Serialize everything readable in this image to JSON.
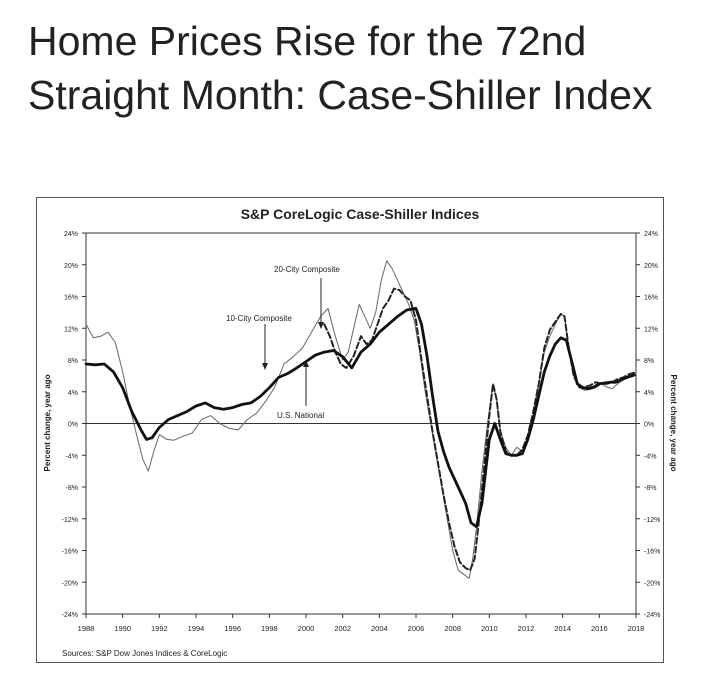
{
  "headline": "Home Prices Rise for the 72nd Straight Month: Case-Shiller Index",
  "chart_data": {
    "type": "line",
    "title": "S&P CoreLogic Case-Shiller Indices",
    "ylabel": "Percent change, year ago",
    "ylabel_right": "Percent change, year ago",
    "source": "Sources: S&P Dow Jones Indices & CoreLogic",
    "xlim": [
      1988,
      2018
    ],
    "ylim": [
      -24,
      24
    ],
    "grid": false,
    "x_ticks": [
      1988,
      1990,
      1992,
      1994,
      1996,
      1998,
      2000,
      2002,
      2004,
      2006,
      2008,
      2010,
      2012,
      2014,
      2016,
      2018
    ],
    "x_tick_labels": [
      "1988",
      "1990",
      "1992",
      "1994",
      "1996",
      "1998",
      "2000",
      "2002",
      "2004",
      "2006",
      "2008",
      "2010",
      "2012",
      "2014",
      "2016",
      "2018"
    ],
    "y_ticks": [
      24,
      20,
      16,
      12,
      8,
      4,
      0,
      -4,
      -8,
      -12,
      -16,
      -20,
      -24
    ],
    "y_tick_labels": [
      "24%",
      "20%",
      "16%",
      "12%",
      "8%",
      "4%",
      "0%",
      "-4%",
      "-8%",
      "-12%",
      "-16%",
      "-20%",
      "-24%"
    ],
    "series": [
      {
        "name": "10-City Composite",
        "style": "thin",
        "color": "#666666",
        "x": [
          1988,
          1988.4,
          1988.8,
          1989.2,
          1989.6,
          1990,
          1990.4,
          1990.8,
          1991.1,
          1991.4,
          1991.7,
          1992,
          1992.4,
          1992.8,
          1993.3,
          1993.8,
          1994.3,
          1994.8,
          1995.3,
          1995.8,
          1996.3,
          1996.8,
          1997.3,
          1997.8,
          1998.3,
          1998.8,
          1999.3,
          1999.8,
          2000.3,
          2000.8,
          2001.2,
          2001.6,
          2002,
          2002.3,
          2002.6,
          2002.9,
          2003.2,
          2003.5,
          2003.8,
          2004.1,
          2004.4,
          2004.7,
          2005,
          2005.3,
          2005.6,
          2005.9,
          2006.2,
          2006.5,
          2006.8,
          2007.1,
          2007.4,
          2007.7,
          2008,
          2008.3,
          2008.6,
          2008.9,
          2009.1,
          2009.3,
          2009.6,
          2009.9,
          2010.2,
          2010.4,
          2010.6,
          2010.9,
          2011.2,
          2011.5,
          2011.8,
          2012.1,
          2012.4,
          2012.7,
          2013,
          2013.3,
          2013.6,
          2013.9,
          2014.1,
          2014.3,
          2014.6,
          2014.9,
          2015.2,
          2015.5,
          2015.8,
          2016.1,
          2016.4,
          2016.7,
          2017,
          2017.3,
          2017.6,
          2017.9
        ],
        "values": [
          12.5,
          10.8,
          11,
          11.5,
          10.2,
          6.5,
          2,
          -1.8,
          -4.5,
          -6,
          -3.5,
          -1.4,
          -2,
          -2.1,
          -1.6,
          -1.2,
          0.5,
          1,
          0,
          -0.6,
          -0.8,
          0.5,
          1.3,
          2.8,
          4.6,
          7.5,
          8.4,
          9.5,
          11.5,
          13.5,
          14.5,
          11,
          8,
          9,
          12,
          15,
          13.5,
          12,
          14,
          18,
          20.5,
          19.5,
          18,
          16.5,
          15,
          13,
          9,
          4,
          0,
          -4,
          -8,
          -12,
          -16,
          -18.5,
          -19,
          -19.5,
          -17,
          -13,
          -6,
          0,
          5,
          3,
          -1,
          -3,
          -4,
          -3,
          -3.5,
          -2,
          1,
          5,
          9,
          11,
          12.5,
          13.8,
          13.5,
          10,
          6,
          4.5,
          4.2,
          4.3,
          4.5,
          5,
          4.6,
          4.4,
          5,
          5.5,
          6,
          6.3
        ]
      },
      {
        "name": "20-City Composite",
        "style": "dashed",
        "color": "#222222",
        "x": [
          2001,
          2001.3,
          2001.6,
          2001.9,
          2002.2,
          2002.6,
          2003,
          2003.3,
          2003.6,
          2003.9,
          2004.2,
          2004.5,
          2004.8,
          2005.1,
          2005.4,
          2005.7,
          2006,
          2006.3,
          2006.6,
          2006.9,
          2007.2,
          2007.5,
          2007.8,
          2008.1,
          2008.4,
          2008.7,
          2008.95,
          2009.2,
          2009.4,
          2009.7,
          2010,
          2010.2,
          2010.4,
          2010.6,
          2010.9,
          2011.2,
          2011.5,
          2011.8,
          2012.1,
          2012.4,
          2012.7,
          2013,
          2013.3,
          2013.6,
          2013.9,
          2014.1,
          2014.3,
          2014.6,
          2014.9,
          2015.2,
          2015.5,
          2015.8,
          2016.1,
          2016.4,
          2016.7,
          2017,
          2017.3,
          2017.6,
          2017.9
        ],
        "values": [
          12.5,
          11,
          9,
          7.5,
          7,
          8.5,
          11,
          10,
          10.5,
          12.5,
          14.5,
          15.5,
          17,
          16.8,
          16,
          15.5,
          13,
          8,
          3.5,
          -1,
          -5,
          -9,
          -12.5,
          -15.5,
          -17.5,
          -18.2,
          -18.5,
          -17,
          -13,
          -6,
          1,
          5,
          3,
          -1,
          -3.5,
          -4,
          -4,
          -3.3,
          -1.5,
          1.5,
          5,
          9.5,
          11.8,
          12.8,
          13.8,
          13.5,
          10,
          6,
          4.6,
          4.6,
          4.8,
          5.2,
          5,
          5,
          5.2,
          5.6,
          5.8,
          6.2,
          6.4
        ]
      },
      {
        "name": "U.S. National",
        "style": "thick",
        "color": "#111111",
        "x": [
          1988,
          1988.5,
          1989,
          1989.5,
          1990,
          1990.5,
          1991,
          1991.3,
          1991.6,
          1992,
          1992.5,
          1993,
          1993.5,
          1994,
          1994.5,
          1995,
          1995.5,
          1996,
          1996.5,
          1997,
          1997.5,
          1998,
          1998.5,
          1999,
          1999.5,
          2000,
          2000.5,
          2001,
          2001.5,
          2002,
          2002.5,
          2003,
          2003.5,
          2004,
          2004.5,
          2005,
          2005.5,
          2006,
          2006.3,
          2006.6,
          2006.9,
          2007.2,
          2007.5,
          2007.8,
          2008.1,
          2008.4,
          2008.7,
          2009,
          2009.3,
          2009.6,
          2010,
          2010.3,
          2010.6,
          2010.9,
          2011.2,
          2011.5,
          2011.8,
          2012.1,
          2012.4,
          2012.7,
          2013,
          2013.3,
          2013.6,
          2013.9,
          2014.2,
          2014.5,
          2014.8,
          2015.1,
          2015.4,
          2015.7,
          2016,
          2016.3,
          2016.6,
          2016.9,
          2017.2,
          2017.5,
          2017.9
        ],
        "values": [
          7.5,
          7.4,
          7.5,
          6.5,
          4.5,
          1.5,
          -0.8,
          -2,
          -1.8,
          -0.5,
          0.5,
          1,
          1.5,
          2.2,
          2.6,
          2,
          1.8,
          2,
          2.4,
          2.6,
          3.4,
          4.5,
          5.8,
          6.3,
          7,
          7.8,
          8.6,
          9,
          9.2,
          8.4,
          7,
          9,
          10,
          11.5,
          12.5,
          13.5,
          14.3,
          14.5,
          12.5,
          8.5,
          3.5,
          -1,
          -3.5,
          -5.5,
          -7,
          -8.5,
          -10,
          -12.5,
          -13,
          -10,
          -2,
          0,
          -2,
          -3.8,
          -4,
          -4,
          -3.8,
          -2,
          0.5,
          3.5,
          6.5,
          8.5,
          10,
          10.8,
          10.5,
          7.8,
          5,
          4.5,
          4.4,
          4.6,
          5,
          5.1,
          5.2,
          5.2,
          5.5,
          5.8,
          6.1
        ]
      }
    ],
    "annotations": [
      {
        "text": "20-City Composite"
      },
      {
        "text": "10-City Composite"
      },
      {
        "text": "U.S. National"
      }
    ]
  }
}
